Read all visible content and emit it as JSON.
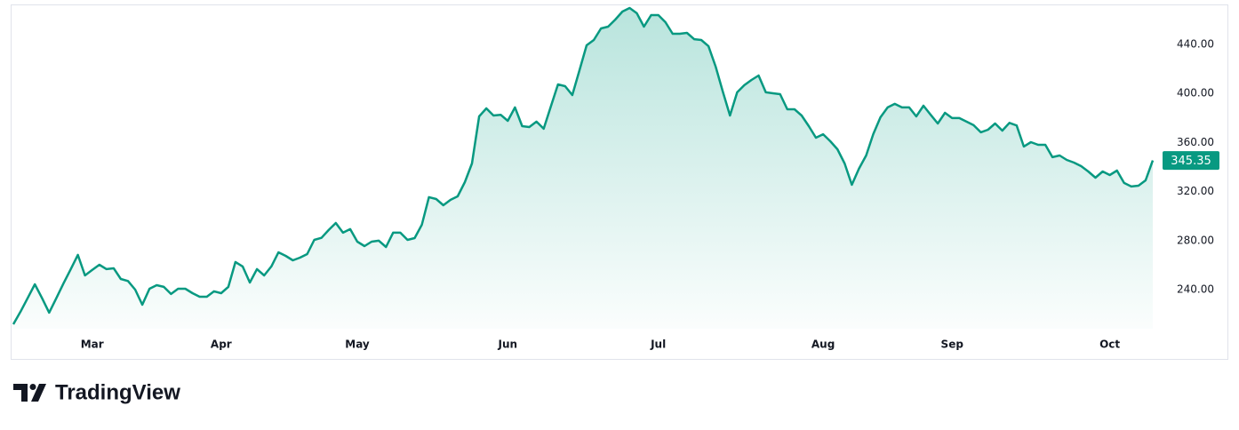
{
  "chart_data": {
    "type": "area",
    "categories": [
      null,
      null,
      null,
      null,
      null,
      null,
      null,
      null,
      null,
      null,
      null,
      "Mar",
      null,
      null,
      null,
      null,
      null,
      null,
      null,
      null,
      null,
      null,
      null,
      null,
      null,
      null,
      null,
      null,
      null,
      "Apr",
      null,
      null,
      null,
      null,
      null,
      null,
      null,
      null,
      null,
      null,
      null,
      null,
      null,
      null,
      null,
      null,
      null,
      null,
      "May",
      null,
      null,
      null,
      null,
      null,
      null,
      null,
      null,
      null,
      null,
      null,
      null,
      null,
      null,
      null,
      null,
      null,
      null,
      null,
      null,
      "Jun",
      null,
      null,
      null,
      null,
      null,
      null,
      null,
      null,
      null,
      null,
      null,
      null,
      null,
      null,
      null,
      null,
      null,
      null,
      null,
      null,
      "Jul",
      null,
      null,
      null,
      null,
      null,
      null,
      null,
      null,
      null,
      null,
      null,
      null,
      null,
      null,
      null,
      null,
      null,
      null,
      null,
      null,
      null,
      null,
      "Aug",
      null,
      null,
      null,
      null,
      null,
      null,
      null,
      null,
      null,
      null,
      null,
      null,
      null,
      null,
      null,
      null,
      null,
      "Sep",
      null,
      null,
      null,
      null,
      null,
      null,
      null,
      null,
      null,
      null,
      null,
      null,
      null,
      null,
      null,
      null,
      null,
      null,
      null,
      null,
      null,
      "Oct",
      null,
      null,
      null,
      null,
      null,
      null
    ],
    "values": [
      211.7,
      222,
      233,
      244.3,
      233,
      221.2,
      233,
      245,
      256.5,
      268.3,
      251.6,
      256,
      260.3,
      256.7,
      257.4,
      248.7,
      247,
      240,
      227.7,
      240.7,
      243.6,
      242.2,
      236.4,
      240.7,
      240.7,
      237.1,
      234.2,
      234.2,
      238.6,
      237.1,
      242.2,
      262.5,
      258.9,
      245.8,
      256.7,
      251.6,
      258.9,
      270.4,
      267.5,
      263.9,
      266.1,
      269,
      280.6,
      282.2,
      288.6,
      294.3,
      286.4,
      289.3,
      279.1,
      275.5,
      279.1,
      279.9,
      274.8,
      286.4,
      286.4,
      280.6,
      282,
      292.9,
      315.4,
      313.9,
      308.8,
      313.2,
      316.1,
      327.7,
      342.9,
      381.3,
      387.8,
      382,
      382.6,
      377.7,
      388.6,
      373.3,
      372.6,
      377,
      371.2,
      389.3,
      407.4,
      405.9,
      398.7,
      419,
      439.3,
      443.6,
      453,
      454.5,
      460.3,
      466.8,
      469.7,
      465.4,
      454.5,
      463.9,
      463.9,
      458.1,
      448.7,
      448.7,
      449.4,
      444.3,
      443.6,
      438.6,
      421.9,
      401.6,
      382,
      400.9,
      406.7,
      411,
      414.6,
      400.9,
      400.1,
      399.4,
      387.1,
      387.1,
      382,
      373.3,
      363.9,
      366.7,
      361,
      354.5,
      342.9,
      325.5,
      338.6,
      349.4,
      366.8,
      380.6,
      388.6,
      391.5,
      388.6,
      388.6,
      381.3,
      390,
      382.6,
      375.5,
      384.2,
      379.9,
      379.9,
      377,
      374.1,
      368.3,
      370.4,
      375.5,
      369.7,
      376,
      373.9,
      356.7,
      360.3,
      358.1,
      358.1,
      348,
      349.4,
      345.8,
      343.6,
      340.7,
      336.4,
      331.3,
      336.4,
      333.5,
      337.1,
      327,
      324.1,
      324.8,
      329.1,
      345.35
    ],
    "color": "#089981",
    "ylim": [
      208.1,
      472.6
    ],
    "yticks": [
      {
        "value": 240,
        "label": "240.00"
      },
      {
        "value": 280,
        "label": "280.00"
      },
      {
        "value": 320,
        "label": "320.00"
      },
      {
        "value": 360,
        "label": "360.00"
      },
      {
        "value": 400,
        "label": "400.00"
      },
      {
        "value": 440,
        "label": "440.00"
      }
    ],
    "grid": false
  },
  "footer": {
    "brand": "TradingView"
  }
}
